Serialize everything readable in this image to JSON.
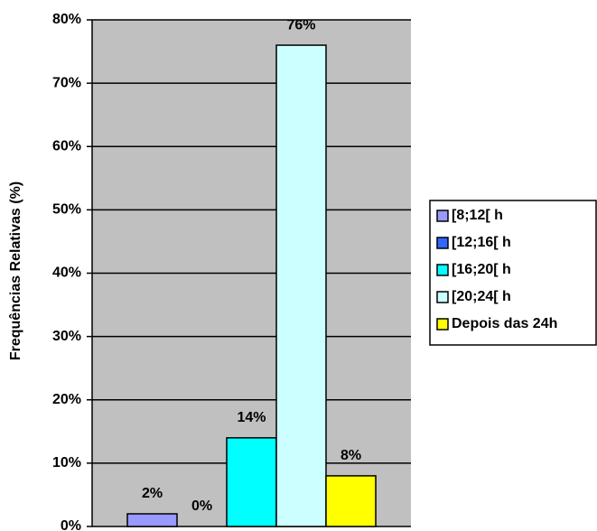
{
  "chart_data": {
    "type": "bar",
    "y_label": "Frequências Relativas (%)",
    "categories": [
      null
    ],
    "series": [
      {
        "name": "[8;12[ h",
        "color": "#9999ff",
        "values": [
          2
        ],
        "value_labels": [
          "2%"
        ]
      },
      {
        "name": "[12;16[ h",
        "color": "#3366ff",
        "values": [
          0
        ],
        "value_labels": [
          "0%"
        ]
      },
      {
        "name": "[16;20[ h",
        "color": "#00ffff",
        "values": [
          14
        ],
        "value_labels": [
          "14%"
        ]
      },
      {
        "name": "[20;24[ h",
        "color": "#ccffff",
        "values": [
          76
        ],
        "value_labels": [
          "76%"
        ]
      },
      {
        "name": "Depois das 24h",
        "color": "#ffff00",
        "values": [
          8
        ],
        "value_labels": [
          "8%"
        ]
      }
    ],
    "ylim": [
      0,
      80
    ],
    "yticks": [
      {
        "value": 0,
        "label": "0%"
      },
      {
        "value": 10,
        "label": "10%"
      },
      {
        "value": 20,
        "label": "20%"
      },
      {
        "value": 30,
        "label": "30%"
      },
      {
        "value": 40,
        "label": "40%"
      },
      {
        "value": 50,
        "label": "50%"
      },
      {
        "value": 60,
        "label": "60%"
      },
      {
        "value": 70,
        "label": "70%"
      },
      {
        "value": 80,
        "label": "80%"
      }
    ],
    "grid": true,
    "plot_background": "#c0c0c0",
    "legend": "right"
  }
}
